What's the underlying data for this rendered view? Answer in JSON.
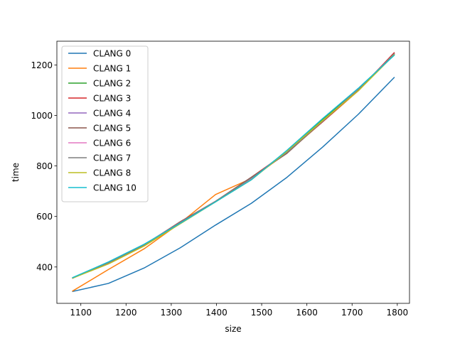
{
  "chart_data": {
    "type": "line",
    "title": "",
    "xlabel": "size",
    "ylabel": "time",
    "xlim": [
      1047,
      1827
    ],
    "ylim": [
      256,
      1294
    ],
    "grid": false,
    "legend_position": "top-left",
    "x_ticks": [
      1100,
      1200,
      1300,
      1400,
      1500,
      1600,
      1700,
      1800
    ],
    "y_ticks": [
      400,
      600,
      800,
      1000,
      1200
    ],
    "x": [
      1082,
      1161,
      1240,
      1319,
      1398,
      1477,
      1556,
      1635,
      1714,
      1793
    ],
    "series": [
      {
        "name": "CLANG 0",
        "color": "#1f77b4",
        "values": [
          303,
          335,
          396,
          475,
          566,
          652,
          755,
          875,
          1005,
          1150
        ]
      },
      {
        "name": "CLANG 1",
        "color": "#ff7f0e",
        "values": [
          305,
          390,
          472,
          573,
          687,
          750,
          852,
          975,
          1098,
          1245
        ]
      },
      {
        "name": "CLANG 2",
        "color": "#2ca02c",
        "values": [
          357,
          418,
          488,
          575,
          658,
          748,
          860,
          985,
          1105,
          1240
        ]
      },
      {
        "name": "CLANG 3",
        "color": "#d62728",
        "values": [
          356,
          416,
          486,
          578,
          660,
          755,
          855,
          975,
          1100,
          1248
        ]
      },
      {
        "name": "CLANG 4",
        "color": "#9467bd",
        "values": [
          357,
          417,
          488,
          577,
          660,
          752,
          855,
          977,
          1103,
          1243
        ]
      },
      {
        "name": "CLANG 5",
        "color": "#8c564b",
        "values": [
          356,
          418,
          487,
          578,
          660,
          755,
          850,
          978,
          1100,
          1245
        ]
      },
      {
        "name": "CLANG 6",
        "color": "#e377c2",
        "values": [
          357,
          417,
          488,
          576,
          660,
          750,
          855,
          978,
          1103,
          1243
        ]
      },
      {
        "name": "CLANG 7",
        "color": "#7f7f7f",
        "values": [
          356,
          417,
          487,
          576,
          660,
          752,
          853,
          977,
          1102,
          1242
        ]
      },
      {
        "name": "CLANG 8",
        "color": "#bcbd22",
        "values": [
          356,
          412,
          483,
          570,
          658,
          745,
          858,
          980,
          1098,
          1240
        ]
      },
      {
        "name": "CLANG 10",
        "color": "#17becf",
        "values": [
          358,
          420,
          490,
          572,
          658,
          745,
          862,
          988,
          1108,
          1238
        ]
      }
    ]
  }
}
